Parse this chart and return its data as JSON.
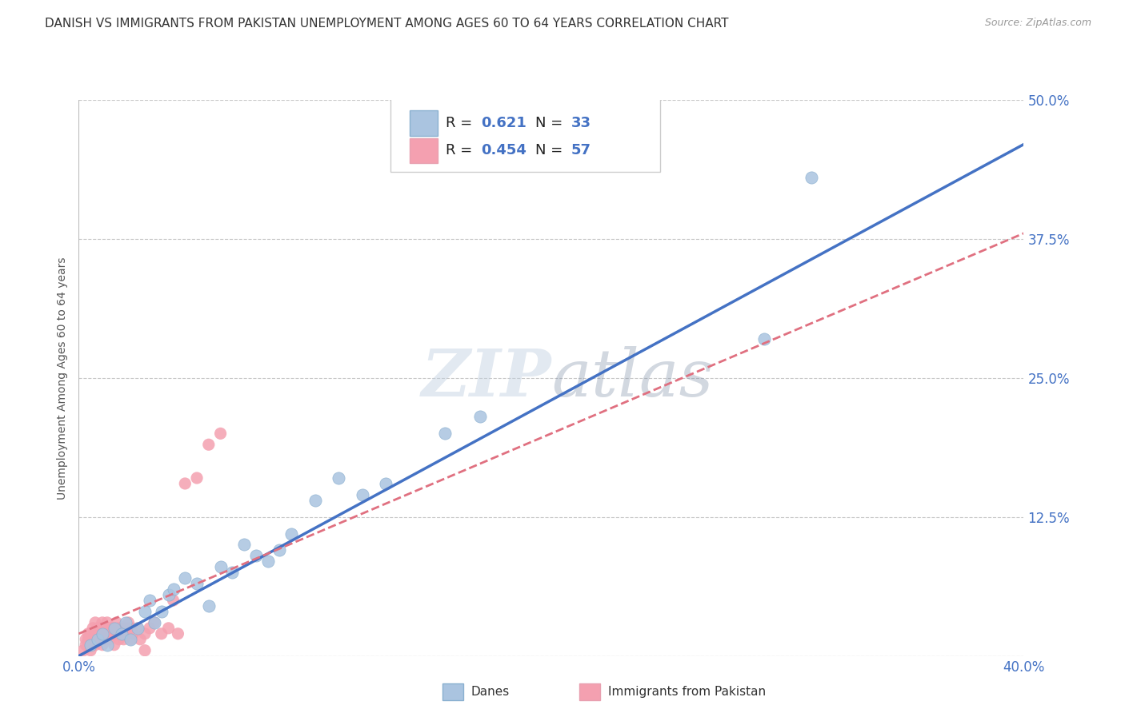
{
  "title": "DANISH VS IMMIGRANTS FROM PAKISTAN UNEMPLOYMENT AMONG AGES 60 TO 64 YEARS CORRELATION CHART",
  "source": "Source: ZipAtlas.com",
  "ylabel": "Unemployment Among Ages 60 to 64 years",
  "xlim": [
    0.0,
    0.4
  ],
  "ylim": [
    0.0,
    0.5
  ],
  "xticks": [
    0.0,
    0.4
  ],
  "xticklabels": [
    "0.0%",
    "40.0%"
  ],
  "yticks": [
    0.0,
    0.125,
    0.25,
    0.375,
    0.5
  ],
  "yticklabels": [
    "",
    "12.5%",
    "25.0%",
    "37.5%",
    "50.0%"
  ],
  "danes_color": "#aac4e0",
  "pakistan_color": "#f4a0b0",
  "danes_line_color": "#4472c4",
  "pakistan_line_color": "#e07080",
  "R_danes": "0.621",
  "N_danes": "33",
  "R_pakistan": "0.454",
  "N_pakistan": "57",
  "background_color": "#ffffff",
  "grid_color": "#c8c8c8",
  "watermark_color": "#c8d8e8",
  "danes_scatter": [
    [
      0.005,
      0.01
    ],
    [
      0.008,
      0.015
    ],
    [
      0.01,
      0.02
    ],
    [
      0.012,
      0.01
    ],
    [
      0.015,
      0.025
    ],
    [
      0.018,
      0.02
    ],
    [
      0.02,
      0.03
    ],
    [
      0.022,
      0.015
    ],
    [
      0.025,
      0.025
    ],
    [
      0.028,
      0.04
    ],
    [
      0.03,
      0.05
    ],
    [
      0.032,
      0.03
    ],
    [
      0.035,
      0.04
    ],
    [
      0.038,
      0.055
    ],
    [
      0.04,
      0.06
    ],
    [
      0.045,
      0.07
    ],
    [
      0.05,
      0.065
    ],
    [
      0.055,
      0.045
    ],
    [
      0.06,
      0.08
    ],
    [
      0.065,
      0.075
    ],
    [
      0.07,
      0.1
    ],
    [
      0.075,
      0.09
    ],
    [
      0.08,
      0.085
    ],
    [
      0.085,
      0.095
    ],
    [
      0.09,
      0.11
    ],
    [
      0.1,
      0.14
    ],
    [
      0.11,
      0.16
    ],
    [
      0.12,
      0.145
    ],
    [
      0.13,
      0.155
    ],
    [
      0.155,
      0.2
    ],
    [
      0.17,
      0.215
    ],
    [
      0.29,
      0.285
    ],
    [
      0.31,
      0.43
    ]
  ],
  "pakistan_scatter": [
    [
      0.002,
      0.005
    ],
    [
      0.003,
      0.01
    ],
    [
      0.003,
      0.015
    ],
    [
      0.004,
      0.02
    ],
    [
      0.004,
      0.015
    ],
    [
      0.005,
      0.005
    ],
    [
      0.005,
      0.01
    ],
    [
      0.005,
      0.02
    ],
    [
      0.006,
      0.01
    ],
    [
      0.006,
      0.015
    ],
    [
      0.006,
      0.025
    ],
    [
      0.007,
      0.01
    ],
    [
      0.007,
      0.015
    ],
    [
      0.007,
      0.02
    ],
    [
      0.007,
      0.03
    ],
    [
      0.008,
      0.015
    ],
    [
      0.008,
      0.02
    ],
    [
      0.008,
      0.025
    ],
    [
      0.009,
      0.015
    ],
    [
      0.009,
      0.025
    ],
    [
      0.01,
      0.02
    ],
    [
      0.01,
      0.03
    ],
    [
      0.01,
      0.01
    ],
    [
      0.011,
      0.015
    ],
    [
      0.011,
      0.025
    ],
    [
      0.012,
      0.02
    ],
    [
      0.012,
      0.03
    ],
    [
      0.013,
      0.025
    ],
    [
      0.013,
      0.015
    ],
    [
      0.014,
      0.02
    ],
    [
      0.015,
      0.025
    ],
    [
      0.015,
      0.01
    ],
    [
      0.016,
      0.02
    ],
    [
      0.016,
      0.03
    ],
    [
      0.017,
      0.025
    ],
    [
      0.017,
      0.015
    ],
    [
      0.018,
      0.02
    ],
    [
      0.019,
      0.015
    ],
    [
      0.02,
      0.025
    ],
    [
      0.021,
      0.03
    ],
    [
      0.022,
      0.015
    ],
    [
      0.022,
      0.025
    ],
    [
      0.023,
      0.02
    ],
    [
      0.025,
      0.025
    ],
    [
      0.026,
      0.015
    ],
    [
      0.028,
      0.02
    ],
    [
      0.03,
      0.025
    ],
    [
      0.032,
      0.03
    ],
    [
      0.035,
      0.02
    ],
    [
      0.038,
      0.025
    ],
    [
      0.04,
      0.05
    ],
    [
      0.042,
      0.02
    ],
    [
      0.045,
      0.155
    ],
    [
      0.05,
      0.16
    ],
    [
      0.055,
      0.19
    ],
    [
      0.06,
      0.2
    ],
    [
      0.028,
      0.005
    ]
  ],
  "danes_line": {
    "x0": 0.0,
    "x1": 0.4,
    "y0": 0.0,
    "y1": 0.46
  },
  "pakistan_line": {
    "x0": 0.0,
    "x1": 0.4,
    "y0": 0.02,
    "y1": 0.38
  },
  "title_fontsize": 11,
  "label_fontsize": 10,
  "tick_fontsize": 12,
  "legend_fontsize": 13
}
